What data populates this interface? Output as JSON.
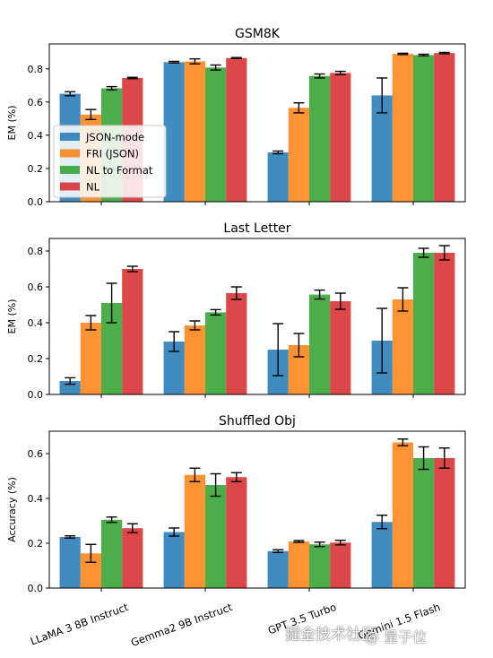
{
  "chart_data": [
    {
      "type": "bar",
      "title": "GSM8K",
      "ylabel": "EM (%)",
      "ylim": [
        0,
        0.95
      ],
      "yticks": [
        "0.0",
        "0.2",
        "0.4",
        "0.6",
        "0.8"
      ],
      "show_xticklabels": false,
      "legend": "center-left",
      "series": [
        {
          "name": "JSON-mode",
          "color": "#1f77b4",
          "values": [
            0.65,
            0.84,
            0.297,
            0.64
          ],
          "err": [
            0.012,
            0.005,
            0.008,
            0.105
          ]
        },
        {
          "name": "FRI (JSON)",
          "color": "#ff7f0e",
          "values": [
            0.525,
            0.845,
            0.565,
            0.89
          ],
          "err": [
            0.03,
            0.015,
            0.03,
            0.004
          ]
        },
        {
          "name": "NL to Format",
          "color": "#2ca02c",
          "values": [
            0.683,
            0.808,
            0.757,
            0.883
          ],
          "err": [
            0.01,
            0.015,
            0.012,
            0.005
          ]
        },
        {
          "name": "NL",
          "color": "#d62728",
          "values": [
            0.745,
            0.865,
            0.775,
            0.895
          ],
          "err": [
            0.004,
            0.003,
            0.01,
            0.004
          ]
        }
      ]
    },
    {
      "type": "bar",
      "title": "Last Letter",
      "ylabel": "EM (%)",
      "ylim": [
        0,
        0.87
      ],
      "yticks": [
        "0.0",
        "0.2",
        "0.4",
        "0.6",
        "0.8"
      ],
      "show_xticklabels": false,
      "series": [
        {
          "name": "JSON-mode",
          "color": "#1f77b4",
          "values": [
            0.075,
            0.295,
            0.25,
            0.3
          ],
          "err": [
            0.018,
            0.055,
            0.145,
            0.18
          ]
        },
        {
          "name": "FRI (JSON)",
          "color": "#ff7f0e",
          "values": [
            0.4,
            0.385,
            0.275,
            0.53
          ],
          "err": [
            0.04,
            0.025,
            0.065,
            0.065
          ]
        },
        {
          "name": "NL to Format",
          "color": "#2ca02c",
          "values": [
            0.51,
            0.458,
            0.557,
            0.79
          ],
          "err": [
            0.11,
            0.015,
            0.025,
            0.025
          ]
        },
        {
          "name": "NL",
          "color": "#d62728",
          "values": [
            0.7,
            0.565,
            0.52,
            0.79
          ],
          "err": [
            0.015,
            0.035,
            0.045,
            0.04
          ]
        }
      ]
    },
    {
      "type": "bar",
      "title": "Shuffled Obj",
      "ylabel": "Accuracy (%)",
      "ylim": [
        0,
        0.7
      ],
      "yticks": [
        "0.0",
        "0.2",
        "0.4",
        "0.6"
      ],
      "show_xticklabels": true,
      "categories": [
        "LLaMA 3 8B Instruct",
        "Gemma2 9B Instruct",
        "GPT 3.5 Turbo",
        "Gemini 1.5 Flash"
      ],
      "series": [
        {
          "name": "JSON-mode",
          "color": "#1f77b4",
          "values": [
            0.228,
            0.25,
            0.165,
            0.295
          ],
          "err": [
            0.005,
            0.018,
            0.006,
            0.03
          ]
        },
        {
          "name": "FRI (JSON)",
          "color": "#ff7f0e",
          "values": [
            0.155,
            0.505,
            0.208,
            0.65
          ],
          "err": [
            0.04,
            0.03,
            0.004,
            0.015
          ]
        },
        {
          "name": "NL to Format",
          "color": "#2ca02c",
          "values": [
            0.305,
            0.46,
            0.195,
            0.58
          ],
          "err": [
            0.012,
            0.05,
            0.01,
            0.05
          ]
        },
        {
          "name": "NL",
          "color": "#d62728",
          "values": [
            0.267,
            0.495,
            0.203,
            0.58
          ],
          "err": [
            0.02,
            0.02,
            0.01,
            0.045
          ]
        }
      ]
    }
  ],
  "watermark": {
    "main": "掘金技术社区",
    "sub": "@ 量子位"
  }
}
